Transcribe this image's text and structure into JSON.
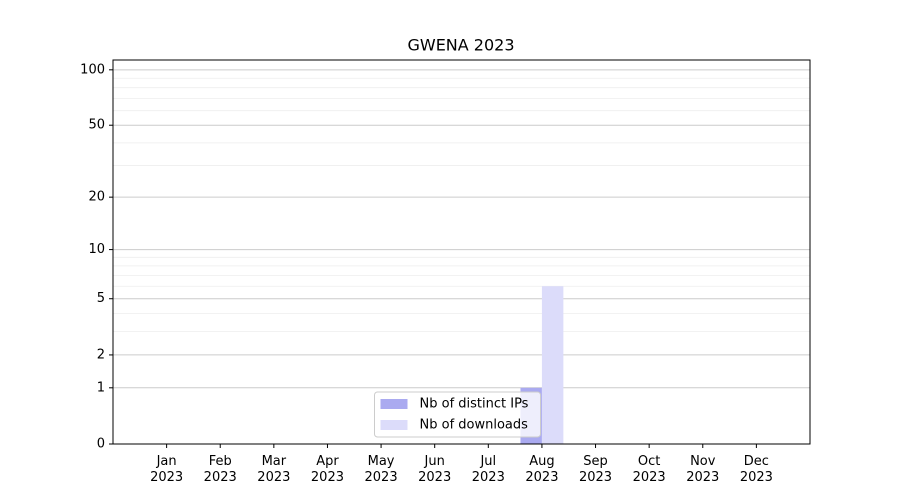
{
  "chart_data": {
    "type": "bar",
    "title": "GWENA 2023",
    "categories": [
      "Jan\n2023",
      "Feb\n2023",
      "Mar\n2023",
      "Apr\n2023",
      "May\n2023",
      "Jun\n2023",
      "Jul\n2023",
      "Aug\n2023",
      "Sep\n2023",
      "Oct\n2023",
      "Nov\n2023",
      "Dec\n2023"
    ],
    "series": [
      {
        "name": "Nb of distinct IPs",
        "color": "#aaaaf0",
        "values": [
          0,
          0,
          0,
          0,
          0,
          0,
          0,
          1,
          0,
          0,
          0,
          0
        ]
      },
      {
        "name": "Nb of downloads",
        "color": "#dcdcfa",
        "values": [
          0,
          0,
          0,
          0,
          0,
          0,
          0,
          6,
          0,
          0,
          0,
          0
        ]
      }
    ],
    "yscale": "log1p",
    "ylim": [
      0,
      113
    ],
    "yticks": [
      0,
      1,
      2,
      5,
      10,
      20,
      50,
      100
    ],
    "yminor_ticks": [
      3,
      4,
      6,
      7,
      8,
      9,
      30,
      40,
      60,
      70,
      80,
      90
    ],
    "grid": true,
    "legend": "lower center"
  }
}
